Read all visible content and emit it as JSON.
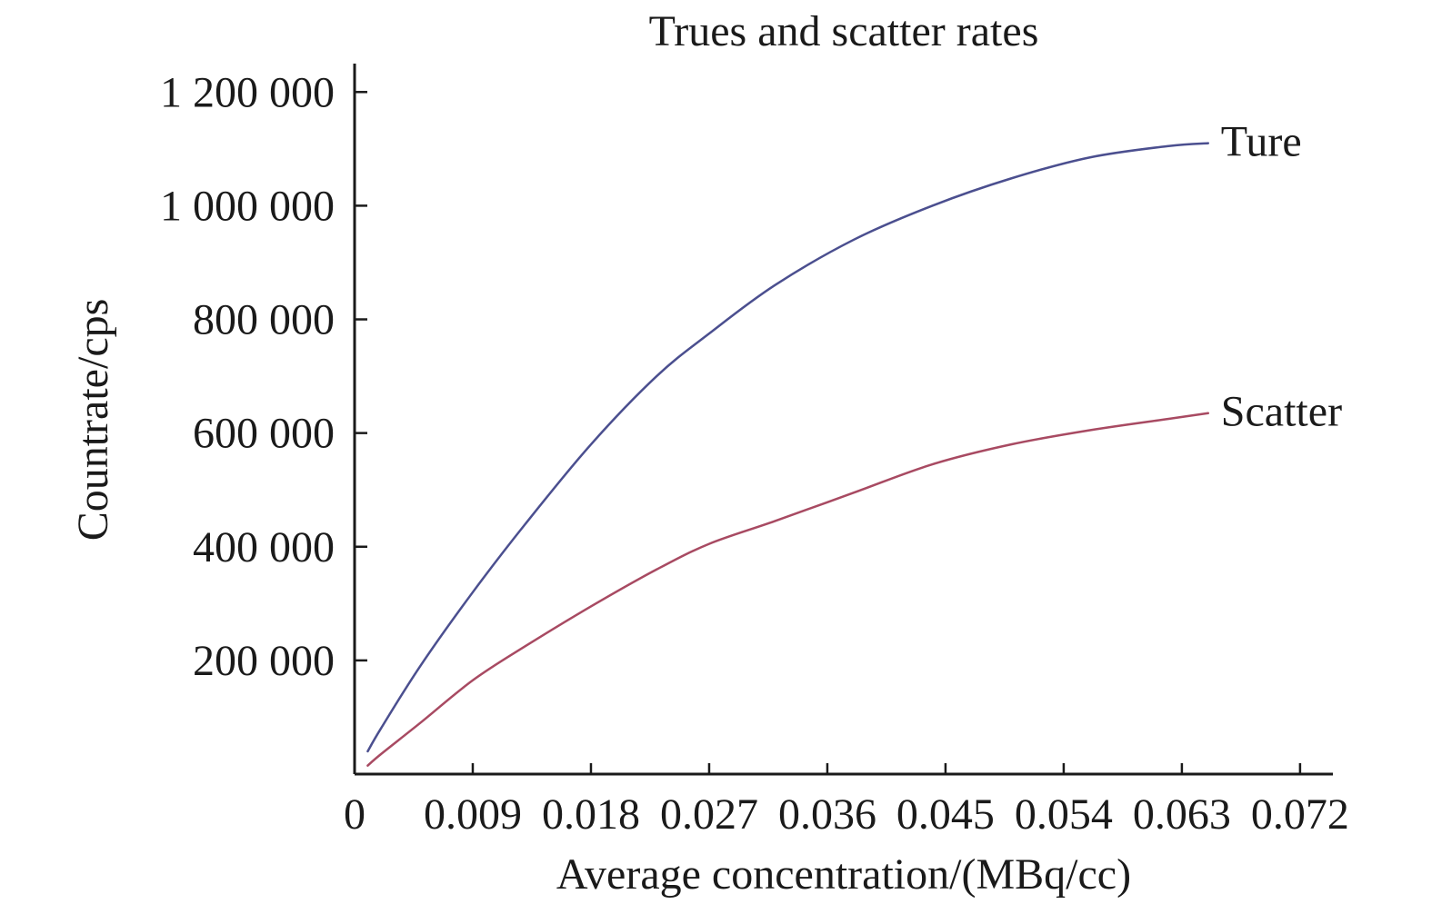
{
  "chart_data": {
    "type": "line",
    "title": "Trues and scatter rates",
    "xlabel": "Average concentration/(MBq/cc)",
    "ylabel": "Countrate/cps",
    "xlim": [
      0,
      0.0745
    ],
    "ylim": [
      0,
      1250000
    ],
    "x_ticks": [
      0,
      0.009,
      0.018,
      0.027,
      0.036,
      0.045,
      0.054,
      0.063,
      0.072
    ],
    "x_tick_labels": [
      "0",
      "0.009",
      "0.018",
      "0.027",
      "0.036",
      "0.045",
      "0.054",
      "0.063",
      "0.072"
    ],
    "y_ticks": [
      200000,
      400000,
      600000,
      800000,
      1000000,
      1200000
    ],
    "y_tick_labels": [
      "200 000",
      "400 000",
      "600 000",
      "800 000",
      "1 000 000",
      "1 200 000"
    ],
    "grid": false,
    "series": [
      {
        "name": "Ture",
        "color": "#4b4f8f",
        "x": [
          0.001,
          0.002,
          0.005,
          0.009,
          0.013,
          0.018,
          0.023,
          0.027,
          0.032,
          0.038,
          0.044,
          0.05,
          0.056,
          0.062,
          0.065
        ],
        "y": [
          40000,
          80000,
          190000,
          320000,
          440000,
          580000,
          700000,
          775000,
          860000,
          940000,
          1000000,
          1048000,
          1085000,
          1105000,
          1110000
        ]
      },
      {
        "name": "Scatter",
        "color": "#a84a62",
        "x": [
          0.001,
          0.002,
          0.005,
          0.009,
          0.013,
          0.018,
          0.023,
          0.027,
          0.032,
          0.038,
          0.044,
          0.05,
          0.056,
          0.062,
          0.065
        ],
        "y": [
          15000,
          35000,
          90000,
          165000,
          225000,
          295000,
          360000,
          405000,
          445000,
          495000,
          545000,
          580000,
          605000,
          625000,
          635000
        ]
      }
    ]
  }
}
